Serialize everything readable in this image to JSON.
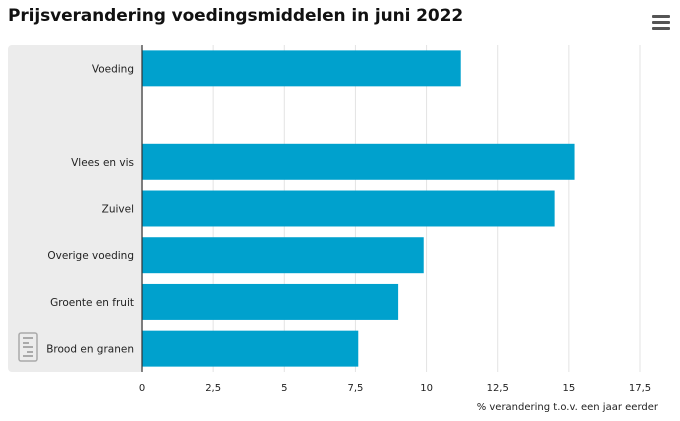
{
  "header": {
    "title": "Prijsverandering voedingsmiddelen in juni 2022",
    "menu_icon": "hamburger-menu-icon"
  },
  "logo": {
    "icon": "cbs-logo-icon"
  },
  "colors": {
    "bar": "#00a1cd",
    "label_panel": "#ececec",
    "grid": "#e3e3e3",
    "axis": "#333333"
  },
  "chart_data": {
    "type": "bar",
    "orientation": "horizontal",
    "title": "Prijsverandering voedingsmiddelen in juni 2022",
    "xlabel": "% verandering t.o.v. een jaar eerder",
    "ylabel": "",
    "xlim": [
      0,
      17.5
    ],
    "ticks": [
      0,
      2.5,
      5,
      7.5,
      10,
      12.5,
      15,
      17.5
    ],
    "tick_labels": [
      "0",
      "2,5",
      "5",
      "7,5",
      "10",
      "12,5",
      "15",
      "17,5"
    ],
    "grid": true,
    "legend": "none",
    "categories": [
      "Voeding",
      "",
      "Vlees en vis",
      "Zuivel",
      "Overige voeding",
      "Groente en fruit",
      "Brood en granen"
    ],
    "values": [
      11.2,
      null,
      15.2,
      14.5,
      9.9,
      9.0,
      7.6
    ]
  }
}
